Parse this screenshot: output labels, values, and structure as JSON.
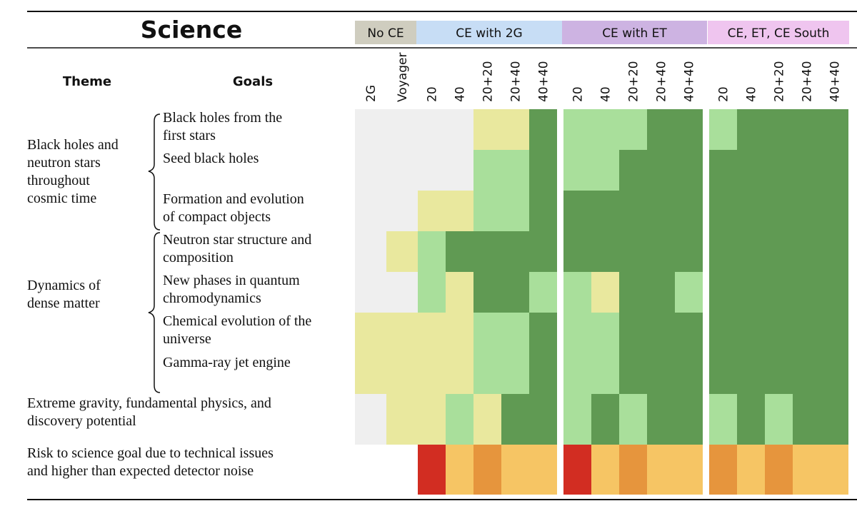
{
  "chart_data": {
    "type": "heatmap",
    "title": "Science",
    "header_labels": {
      "theme": "Theme",
      "goals": "Goals"
    },
    "groups": [
      {
        "name": "No CE",
        "color": "#cfcdbf",
        "columns": [
          "2G",
          "Voyager"
        ]
      },
      {
        "name": "CE with 2G",
        "color": "#c7ddf5",
        "columns": [
          "20",
          "40",
          "20+20",
          "20+40",
          "40+40"
        ]
      },
      {
        "name": "CE with ET",
        "color": "#cdb3e2",
        "columns": [
          "20",
          "40",
          "20+20",
          "20+40",
          "40+40"
        ]
      },
      {
        "name": "CE, ET, CE South",
        "color": "#efc5ef",
        "columns": [
          "20",
          "40",
          "20+20",
          "20+40",
          "40+40"
        ]
      }
    ],
    "legend_levels": {
      "none": "#efefef",
      "low": "#e9e89e",
      "medium": "#a9df9b",
      "high": "#609a53"
    },
    "risk_levels": {
      "high": "#d22d22",
      "medium": "#e6953d",
      "low": "#f6c564"
    },
    "themes": [
      {
        "lines": [
          "Black holes and",
          "neutron stars",
          "throughout",
          "cosmic time"
        ]
      },
      {
        "lines": [
          "Dynamics of",
          "dense matter"
        ]
      },
      {
        "lines": [
          "Extreme gravity, fundamental physics, and",
          "discovery potential"
        ]
      },
      {
        "lines": [
          "Risk to science goal due to technical issues",
          "and higher than expected detector noise"
        ]
      }
    ],
    "goals": [
      {
        "lines": [
          "Black holes from the",
          "first stars"
        ]
      },
      {
        "lines": [
          "Seed black holes"
        ]
      },
      {
        "lines": [
          "Formation and evolution",
          "of compact objects"
        ]
      },
      {
        "lines": [
          "Neutron star structure and",
          "composition"
        ]
      },
      {
        "lines": [
          "New phases in quantum",
          "chromodynamics"
        ]
      },
      {
        "lines": [
          "Chemical evolution of the",
          "universe"
        ]
      },
      {
        "lines": [
          "Gamma-ray jet engine"
        ]
      }
    ],
    "rows": [
      {
        "goal": "Black holes from the first stars",
        "values": [
          0,
          0,
          0,
          0,
          1,
          1,
          3,
          2,
          2,
          2,
          3,
          3,
          2,
          3,
          3,
          3,
          3
        ]
      },
      {
        "goal": "Seed black holes",
        "values": [
          0,
          0,
          0,
          0,
          2,
          2,
          3,
          2,
          2,
          3,
          3,
          3,
          3,
          3,
          3,
          3,
          3
        ]
      },
      {
        "goal": "Formation and evolution of compact objects",
        "values": [
          0,
          0,
          1,
          1,
          2,
          2,
          3,
          3,
          3,
          3,
          3,
          3,
          3,
          3,
          3,
          3,
          3
        ]
      },
      {
        "goal": "Neutron star structure and composition",
        "values": [
          0,
          1,
          2,
          3,
          3,
          3,
          3,
          3,
          3,
          3,
          3,
          3,
          3,
          3,
          3,
          3,
          3
        ]
      },
      {
        "goal": "New phases in quantum chromodynamics",
        "values": [
          0,
          0,
          2,
          1,
          3,
          3,
          2,
          2,
          1,
          3,
          3,
          2,
          3,
          3,
          3,
          3,
          3
        ]
      },
      {
        "goal": "Chemical evolution of the universe",
        "values": [
          1,
          1,
          1,
          1,
          2,
          2,
          3,
          2,
          2,
          3,
          3,
          3,
          3,
          3,
          3,
          3,
          3
        ]
      },
      {
        "goal": "Gamma-ray jet engine",
        "values": [
          1,
          1,
          1,
          1,
          2,
          2,
          3,
          2,
          2,
          3,
          3,
          3,
          3,
          3,
          3,
          3,
          3
        ]
      },
      {
        "goal": "Extreme gravity, fundamental physics, and discovery potential",
        "values": [
          0,
          1,
          1,
          2,
          1,
          3,
          3,
          2,
          3,
          2,
          3,
          3,
          2,
          3,
          2,
          3,
          3
        ]
      }
    ],
    "risk_row": {
      "values": [
        null,
        null,
        3,
        1,
        2,
        1,
        1,
        3,
        1,
        2,
        1,
        1,
        2,
        1,
        2,
        1,
        1
      ]
    }
  }
}
